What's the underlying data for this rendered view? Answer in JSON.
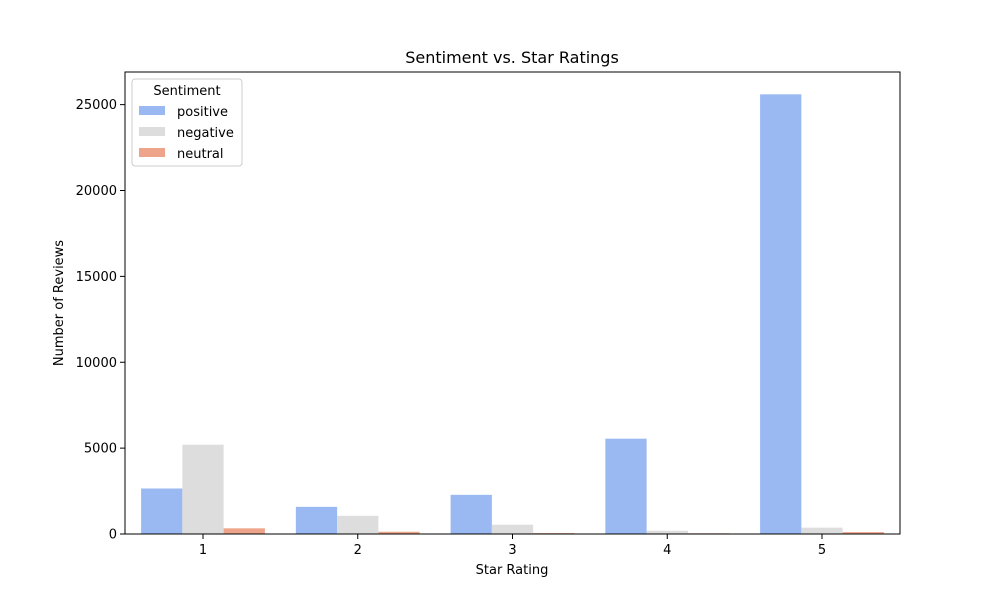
{
  "chart_data": {
    "type": "bar",
    "title": "Sentiment vs. Star Ratings",
    "xlabel": "Star Rating",
    "ylabel": "Number of Reviews",
    "categories": [
      "1",
      "2",
      "3",
      "4",
      "5"
    ],
    "ylim": [
      0,
      26900
    ],
    "yticks": [
      0,
      5000,
      10000,
      15000,
      20000,
      25000
    ],
    "grid": false,
    "legend": {
      "title": "Sentiment",
      "position": "top-left"
    },
    "series": [
      {
        "name": "positive",
        "color": "#9ab8f2",
        "values": [
          2650,
          1580,
          2280,
          5550,
          25600
        ]
      },
      {
        "name": "negative",
        "color": "#dddddd",
        "values": [
          5200,
          1060,
          540,
          190,
          370
        ]
      },
      {
        "name": "neutral",
        "color": "#eea38b",
        "values": [
          330,
          130,
          50,
          40,
          110
        ]
      }
    ]
  }
}
